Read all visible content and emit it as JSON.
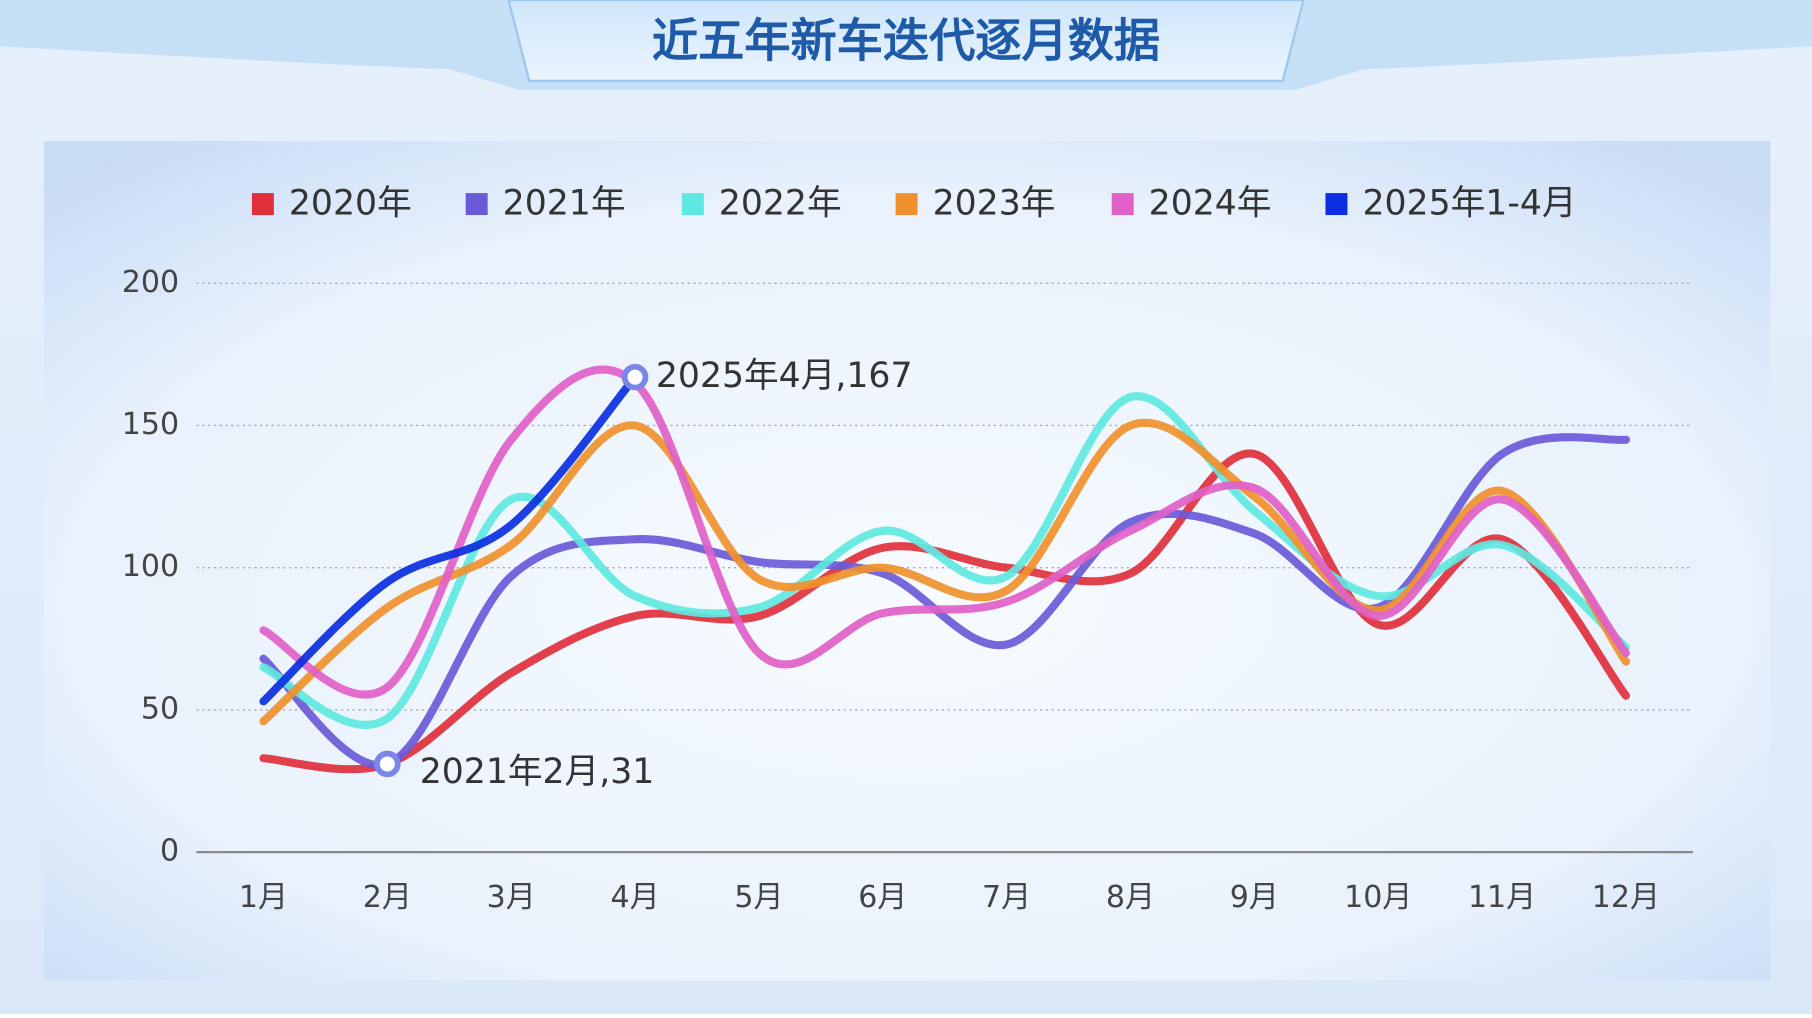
{
  "chart_data": {
    "type": "line",
    "title": "近五年新车迭代逐月数据",
    "categories": [
      "1月",
      "2月",
      "3月",
      "4月",
      "5月",
      "6月",
      "7月",
      "8月",
      "9月",
      "10月",
      "11月",
      "12月"
    ],
    "series": [
      {
        "name": "2020年",
        "color": "#e0303c",
        "values": [
          33,
          31,
          63,
          83,
          83,
          107,
          100,
          98,
          140,
          80,
          110,
          55
        ]
      },
      {
        "name": "2021年",
        "color": "#6a5ad8",
        "values": [
          68,
          31,
          97,
          110,
          102,
          98,
          73,
          116,
          112,
          86,
          140,
          145
        ]
      },
      {
        "name": "2022年",
        "color": "#5ee8e0",
        "values": [
          65,
          47,
          124,
          90,
          86,
          113,
          97,
          160,
          120,
          90,
          108,
          72
        ]
      },
      {
        "name": "2023年",
        "color": "#f0902c",
        "values": [
          46,
          86,
          108,
          150,
          96,
          100,
          92,
          150,
          125,
          85,
          127,
          67
        ]
      },
      {
        "name": "2024年",
        "color": "#e060c8",
        "values": [
          78,
          58,
          145,
          165,
          70,
          84,
          88,
          113,
          128,
          83,
          124,
          70
        ]
      },
      {
        "name": "2025年1-4月",
        "color": "#0a2ee0",
        "values": [
          53,
          95,
          115,
          167,
          null,
          null,
          null,
          null,
          null,
          null,
          null,
          null
        ]
      }
    ],
    "annotations": [
      "2025年4月,167",
      "2021年2月,31"
    ],
    "ylim": [
      0,
      200
    ],
    "yticks": [
      0,
      50,
      100,
      150,
      200
    ],
    "grid": true,
    "legend": "top"
  }
}
